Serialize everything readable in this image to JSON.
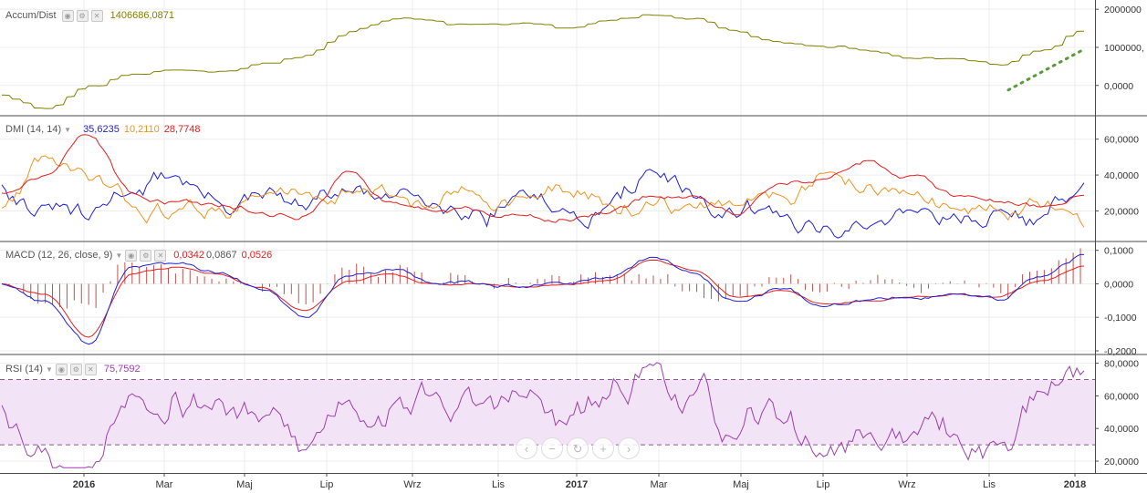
{
  "colors": {
    "accum": "#808000",
    "trend_dots": "#5a9a3a",
    "plus_di": "#1e1ed8",
    "minus_di": "#f0921e",
    "adx": "#e51c1c",
    "macd": "#1e1ed8",
    "signal": "#e51c1c",
    "histogram": "#c0504d",
    "rsi": "#9b3fb0",
    "rsi_band": "#f3e3f6",
    "axis_text": "#333333",
    "grid": "#ededed"
  },
  "panes": {
    "accum": {
      "title": "Accum/Dist",
      "value": "1406686,0871",
      "ticks": [
        "2000000",
        "1000000,",
        "0,0000"
      ]
    },
    "dmi": {
      "title": "DMI (14, 14)",
      "values": [
        "35,6235",
        "10,2110",
        "28,7748"
      ],
      "ticks": [
        "60,0000",
        "40,0000",
        "20,0000"
      ]
    },
    "macd": {
      "title": "MACD (12, 26, close, 9)",
      "values": [
        "0,0342",
        "0,0867",
        "0,0526"
      ],
      "ticks": [
        "0,1000",
        "0,0000",
        "-0,1000",
        "-0,2000"
      ]
    },
    "rsi": {
      "title": "RSI (14)",
      "value": "75,7592",
      "ticks": [
        "80,0000",
        "60,0000",
        "40,0000",
        "20,0000"
      ]
    }
  },
  "x_labels": [
    "2016",
    "Mar",
    "Maj",
    "Lip",
    "Wrz",
    "Lis",
    "2017",
    "Mar",
    "Maj",
    "Lip",
    "Wrz",
    "Lis",
    "2018"
  ],
  "zoom_controls": [
    "‹",
    "−",
    "↻",
    "+",
    "›"
  ],
  "chart_data": [
    {
      "type": "line",
      "name": "Accum/Dist",
      "x": [
        "2015-12",
        "2016-01",
        "2016-02",
        "2016-03",
        "2016-04",
        "2016-05",
        "2016-06",
        "2016-07",
        "2016-08",
        "2016-09",
        "2016-10",
        "2016-11",
        "2016-12",
        "2017-01",
        "2017-02",
        "2017-03",
        "2017-04",
        "2017-05",
        "2017-06",
        "2017-07",
        "2017-08",
        "2017-09",
        "2017-10",
        "2017-11",
        "2017-12",
        "2018-01"
      ],
      "values": [
        -250000,
        -600000,
        0,
        300000,
        400000,
        380000,
        600000,
        800000,
        1400000,
        1750000,
        1700000,
        1600000,
        1650000,
        1500000,
        1700000,
        1850000,
        1800000,
        1400000,
        1100000,
        1000000,
        900000,
        700000,
        700000,
        500000,
        900000,
        1406686
      ],
      "ylim": [
        -700000,
        2100000
      ]
    },
    {
      "type": "line",
      "name": "DMI (14, 14)",
      "x": [
        "2015-12",
        "2016-01",
        "2016-02",
        "2016-03",
        "2016-04",
        "2016-05",
        "2016-06",
        "2016-07",
        "2016-08",
        "2016-09",
        "2016-10",
        "2016-11",
        "2016-12",
        "2017-01",
        "2017-02",
        "2017-03",
        "2017-04",
        "2017-05",
        "2017-06",
        "2017-07",
        "2017-08",
        "2017-09",
        "2017-10",
        "2017-11",
        "2017-12",
        "2018-01"
      ],
      "series": [
        {
          "values": [
            35,
            22,
            14,
            32,
            40,
            25,
            26,
            20,
            30,
            25,
            28,
            22,
            32,
            20,
            24,
            42,
            25,
            14,
            16,
            12,
            10,
            22,
            20,
            20,
            16,
            35.6235
          ]
        },
        {
          "values": [
            22,
            50,
            35,
            22,
            20,
            22,
            28,
            30,
            32,
            28,
            22,
            30,
            28,
            30,
            24,
            24,
            20,
            22,
            30,
            40,
            35,
            28,
            22,
            20,
            20,
            10.211
          ]
        },
        {
          "values": [
            30,
            40,
            62,
            30,
            25,
            22,
            20,
            18,
            42,
            25,
            20,
            20,
            18,
            16,
            18,
            28,
            28,
            18,
            35,
            38,
            48,
            40,
            28,
            25,
            22,
            28.7748
          ]
        }
      ],
      "ylim": [
        5,
        70
      ]
    },
    {
      "type": "line",
      "name": "MACD (12, 26, close, 9)",
      "x": [
        "2015-12",
        "2016-01",
        "2016-02",
        "2016-03",
        "2016-04",
        "2016-05",
        "2016-06",
        "2016-07",
        "2016-08",
        "2016-09",
        "2016-10",
        "2016-11",
        "2016-12",
        "2017-01",
        "2017-02",
        "2017-03",
        "2017-04",
        "2017-05",
        "2017-06",
        "2017-07",
        "2017-08",
        "2017-09",
        "2017-10",
        "2017-11",
        "2017-12",
        "2018-01"
      ],
      "series": [
        {
          "values": [
            0,
            -0.05,
            -0.18,
            0.05,
            0.06,
            0.03,
            -0.02,
            -0.1,
            0.02,
            0.04,
            0,
            0,
            -0.01,
            0,
            0.02,
            0.08,
            0.03,
            -0.05,
            -0.02,
            -0.07,
            -0.05,
            -0.04,
            -0.03,
            -0.05,
            0.02,
            0.0867
          ]
        },
        {
          "values": [
            0,
            -0.03,
            -0.16,
            0.03,
            0.05,
            0.03,
            -0.01,
            -0.08,
            0.01,
            0.03,
            0,
            0,
            -0.01,
            0,
            0.01,
            0.07,
            0.04,
            -0.04,
            -0.02,
            -0.06,
            -0.05,
            -0.04,
            -0.03,
            -0.04,
            0.01,
            0.0526
          ]
        }
      ],
      "ylim": [
        -0.2,
        0.11
      ]
    },
    {
      "type": "line",
      "name": "RSI (14)",
      "x": [
        "2015-12",
        "2016-01",
        "2016-02",
        "2016-03",
        "2016-04",
        "2016-05",
        "2016-06",
        "2016-07",
        "2016-08",
        "2016-09",
        "2016-10",
        "2016-11",
        "2016-12",
        "2017-01",
        "2017-02",
        "2017-03",
        "2017-04",
        "2017-05",
        "2017-06",
        "2017-07",
        "2017-08",
        "2017-09",
        "2017-10",
        "2017-11",
        "2017-12",
        "2018-01"
      ],
      "values": [
        55,
        30,
        20,
        65,
        68,
        60,
        45,
        25,
        60,
        55,
        60,
        52,
        58,
        40,
        55,
        78,
        60,
        30,
        45,
        25,
        35,
        38,
        35,
        30,
        60,
        75.7592
      ],
      "ylim": [
        15,
        82
      ],
      "bands": [
        30,
        70
      ]
    }
  ]
}
